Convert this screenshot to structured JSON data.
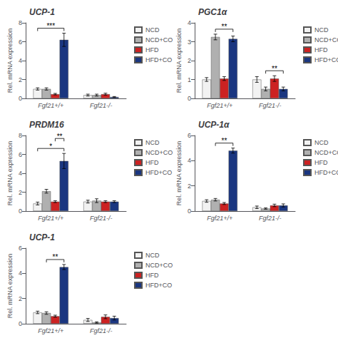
{
  "chart_data": [
    {
      "type": "bar",
      "title": "UCP-1",
      "ylabel": "Rel. mRNA expression",
      "categories": [
        "Fgf21+/+",
        "Fgf21-/-"
      ],
      "series": [
        {
          "name": "NCD",
          "color": "#f2f2f2",
          "values": [
            1.0,
            0.35
          ],
          "errors": [
            0.12,
            0.1
          ]
        },
        {
          "name": "NCD+CO",
          "color": "#b0b0b0",
          "values": [
            1.0,
            0.35
          ],
          "errors": [
            0.12,
            0.1
          ]
        },
        {
          "name": "HFD",
          "color": "#cc2222",
          "values": [
            0.45,
            0.45
          ],
          "errors": [
            0.08,
            0.1
          ]
        },
        {
          "name": "HFD+CO",
          "color": "#1a3680",
          "values": [
            6.2,
            0.15
          ],
          "errors": [
            0.7,
            0.05
          ]
        }
      ],
      "ylim": [
        0,
        8
      ],
      "yticks": [
        0,
        2,
        4,
        6,
        8
      ],
      "grid": false,
      "legend": "upper right",
      "annotations": [
        {
          "text": "***",
          "category": "Fgf21+/+",
          "between": [
            "NCD",
            "HFD+CO"
          ]
        }
      ]
    },
    {
      "type": "bar",
      "title": "PGC1α",
      "ylabel": "Rel. mRNA expression",
      "categories": [
        "Fgf21+/+",
        "Fgf21-/-"
      ],
      "series": [
        {
          "name": "NCD",
          "color": "#f2f2f2",
          "values": [
            1.0,
            1.0
          ],
          "errors": [
            0.1,
            0.15
          ]
        },
        {
          "name": "NCD+CO",
          "color": "#b0b0b0",
          "values": [
            3.25,
            0.5
          ],
          "errors": [
            0.15,
            0.1
          ]
        },
        {
          "name": "HFD",
          "color": "#cc2222",
          "values": [
            1.05,
            1.05
          ],
          "errors": [
            0.1,
            0.15
          ]
        },
        {
          "name": "HFD+CO",
          "color": "#1a3680",
          "values": [
            3.15,
            0.5
          ],
          "errors": [
            0.15,
            0.1
          ]
        }
      ],
      "ylim": [
        0,
        4
      ],
      "yticks": [
        0,
        1,
        2,
        3,
        4
      ],
      "grid": false,
      "legend": "upper right",
      "annotations": [
        {
          "text": "**",
          "category": "Fgf21+/+",
          "between": [
            "NCD+CO",
            "HFD+CO"
          ]
        },
        {
          "text": "**",
          "category": "Fgf21-/-",
          "between": [
            "NCD+CO",
            "HFD+CO"
          ]
        }
      ]
    },
    {
      "type": "bar",
      "title": "PRDM16",
      "ylabel": "Rel. mRNA expression",
      "categories": [
        "Fgf21+/+",
        "Fgf21-/-"
      ],
      "series": [
        {
          "name": "NCD",
          "color": "#f2f2f2",
          "values": [
            0.8,
            1.0
          ],
          "errors": [
            0.15,
            0.15
          ]
        },
        {
          "name": "NCD+CO",
          "color": "#b0b0b0",
          "values": [
            2.1,
            1.1
          ],
          "errors": [
            0.2,
            0.2
          ]
        },
        {
          "name": "HFD",
          "color": "#cc2222",
          "values": [
            1.0,
            1.0
          ],
          "errors": [
            0.1,
            0.1
          ]
        },
        {
          "name": "HFD+CO",
          "color": "#1a3680",
          "values": [
            5.3,
            1.0
          ],
          "errors": [
            0.8,
            0.1
          ]
        }
      ],
      "ylim": [
        0,
        8
      ],
      "yticks": [
        0,
        2,
        4,
        6,
        8
      ],
      "grid": false,
      "legend": "upper right",
      "annotations": [
        {
          "text": "*",
          "category": "Fgf21+/+",
          "between": [
            "NCD",
            "HFD+CO"
          ]
        },
        {
          "text": "**",
          "category": "Fgf21+/+",
          "between": [
            "HFD",
            "HFD+CO"
          ]
        }
      ]
    },
    {
      "type": "bar",
      "title": "UCP-1α",
      "ylabel": "Rel. mRNA expression",
      "categories": [
        "Fgf21+/+",
        "Fgf21-/-"
      ],
      "series": [
        {
          "name": "NCD",
          "color": "#f2f2f2",
          "values": [
            0.8,
            0.3
          ],
          "errors": [
            0.1,
            0.1
          ]
        },
        {
          "name": "NCD+CO",
          "color": "#b0b0b0",
          "values": [
            0.9,
            0.2
          ],
          "errors": [
            0.1,
            0.05
          ]
        },
        {
          "name": "HFD",
          "color": "#cc2222",
          "values": [
            0.6,
            0.45
          ],
          "errors": [
            0.08,
            0.1
          ]
        },
        {
          "name": "HFD+CO",
          "color": "#1a3680",
          "values": [
            4.8,
            0.45
          ],
          "errors": [
            0.2,
            0.12
          ]
        }
      ],
      "ylim": [
        0,
        6
      ],
      "yticks": [
        0,
        2,
        4,
        6
      ],
      "grid": false,
      "legend": "upper right",
      "annotations": [
        {
          "text": "**",
          "category": "Fgf21+/+",
          "between": [
            "NCD+CO",
            "HFD+CO"
          ]
        }
      ]
    },
    {
      "type": "bar",
      "title": "UCP-1",
      "ylabel": "Rel. mRNA expression",
      "categories": [
        "Fgf21+/+",
        "Fgf21-/-"
      ],
      "series": [
        {
          "name": "NCD",
          "color": "#f2f2f2",
          "values": [
            0.9,
            0.3
          ],
          "errors": [
            0.1,
            0.12
          ]
        },
        {
          "name": "NCD+CO",
          "color": "#b0b0b0",
          "values": [
            0.85,
            0.1
          ],
          "errors": [
            0.1,
            0.05
          ]
        },
        {
          "name": "HFD",
          "color": "#cc2222",
          "values": [
            0.6,
            0.55
          ],
          "errors": [
            0.08,
            0.15
          ]
        },
        {
          "name": "HFD+CO",
          "color": "#1a3680",
          "values": [
            4.5,
            0.45
          ],
          "errors": [
            0.2,
            0.15
          ]
        }
      ],
      "ylim": [
        0,
        6
      ],
      "yticks": [
        0,
        2,
        4,
        6
      ],
      "grid": false,
      "legend": "upper right",
      "annotations": [
        {
          "text": "**",
          "category": "Fgf21+/+",
          "between": [
            "NCD+CO",
            "HFD+CO"
          ]
        }
      ]
    }
  ]
}
